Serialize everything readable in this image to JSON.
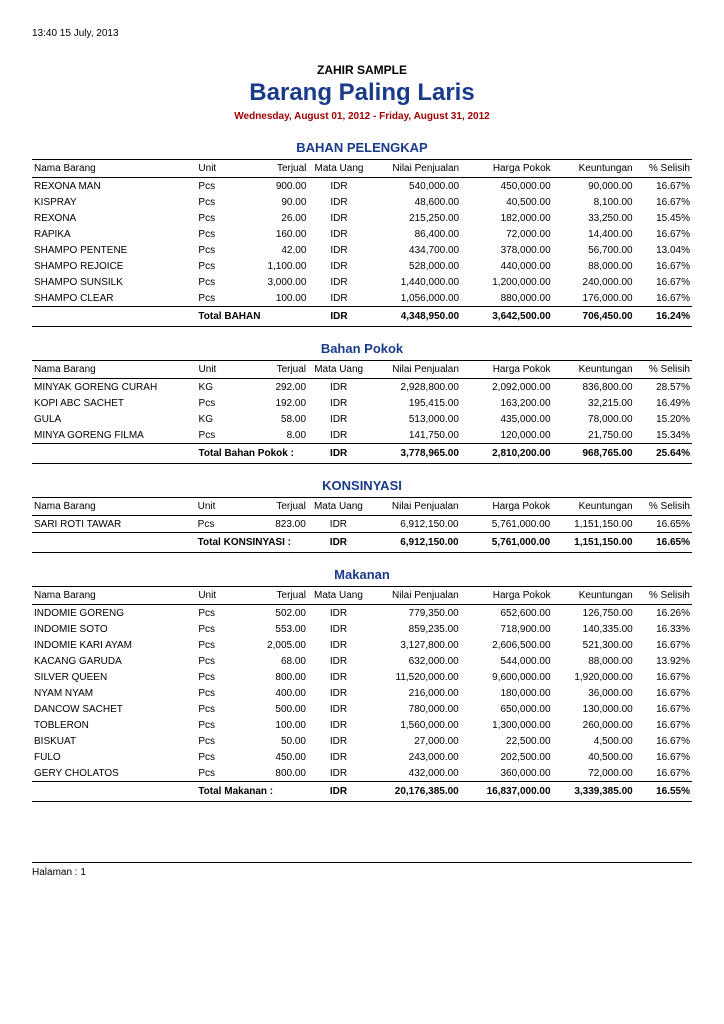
{
  "meta": {
    "timestamp": "13:40   15 July, 2013"
  },
  "header": {
    "company": "ZAHIR SAMPLE",
    "title": "Barang Paling Laris",
    "date_range": "Wednesday, August 01, 2012 - Friday, August 31, 2012"
  },
  "columns": {
    "nama": "Nama Barang",
    "unit": "Unit",
    "terjual": "Terjual",
    "mata_uang": "Mata Uang",
    "nilai": "Nilai Penjualan",
    "harga": "Harga Pokok",
    "keuntungan": "Keuntungan",
    "selisih": "% Selisih"
  },
  "sections": [
    {
      "title": "BAHAN PELENGKAP",
      "total_label": "Total BAHAN",
      "total": {
        "cur": "IDR",
        "nilai": "4,348,950.00",
        "harga": "3,642,500.00",
        "keun": "706,450.00",
        "sel": "16.24%"
      },
      "rows": [
        {
          "n": "REXONA MAN",
          "u": "Pcs",
          "t": "900.00",
          "c": "IDR",
          "ni": "540,000.00",
          "h": "450,000.00",
          "k": "90,000.00",
          "s": "16.67%"
        },
        {
          "n": "KISPRAY",
          "u": "Pcs",
          "t": "90.00",
          "c": "IDR",
          "ni": "48,600.00",
          "h": "40,500.00",
          "k": "8,100.00",
          "s": "16.67%"
        },
        {
          "n": "REXONA",
          "u": "Pcs",
          "t": "26.00",
          "c": "IDR",
          "ni": "215,250.00",
          "h": "182,000.00",
          "k": "33,250.00",
          "s": "15.45%"
        },
        {
          "n": "RAPIKA",
          "u": "Pcs",
          "t": "160.00",
          "c": "IDR",
          "ni": "86,400.00",
          "h": "72,000.00",
          "k": "14,400.00",
          "s": "16.67%"
        },
        {
          "n": "SHAMPO PENTENE",
          "u": "Pcs",
          "t": "42.00",
          "c": "IDR",
          "ni": "434,700.00",
          "h": "378,000.00",
          "k": "56,700.00",
          "s": "13.04%"
        },
        {
          "n": "SHAMPO REJOICE",
          "u": "Pcs",
          "t": "1,100.00",
          "c": "IDR",
          "ni": "528,000.00",
          "h": "440,000.00",
          "k": "88,000.00",
          "s": "16.67%"
        },
        {
          "n": "SHAMPO SUNSILK",
          "u": "Pcs",
          "t": "3,000.00",
          "c": "IDR",
          "ni": "1,440,000.00",
          "h": "1,200,000.00",
          "k": "240,000.00",
          "s": "16.67%"
        },
        {
          "n": "SHAMPO CLEAR",
          "u": "Pcs",
          "t": "100.00",
          "c": "IDR",
          "ni": "1,056,000.00",
          "h": "880,000.00",
          "k": "176,000.00",
          "s": "16.67%"
        }
      ]
    },
    {
      "title": "Bahan Pokok",
      "total_label": "Total Bahan Pokok :",
      "total": {
        "cur": "IDR",
        "nilai": "3,778,965.00",
        "harga": "2,810,200.00",
        "keun": "968,765.00",
        "sel": "25.64%"
      },
      "rows": [
        {
          "n": "MINYAK GORENG CURAH",
          "u": "KG",
          "t": "292.00",
          "c": "IDR",
          "ni": "2,928,800.00",
          "h": "2,092,000.00",
          "k": "836,800.00",
          "s": "28.57%"
        },
        {
          "n": "KOPI ABC SACHET",
          "u": "Pcs",
          "t": "192.00",
          "c": "IDR",
          "ni": "195,415.00",
          "h": "163,200.00",
          "k": "32,215.00",
          "s": "16.49%"
        },
        {
          "n": "GULA",
          "u": "KG",
          "t": "58.00",
          "c": "IDR",
          "ni": "513,000.00",
          "h": "435,000.00",
          "k": "78,000.00",
          "s": "15.20%"
        },
        {
          "n": "MINYA GORENG FILMA",
          "u": "Pcs",
          "t": "8.00",
          "c": "IDR",
          "ni": "141,750.00",
          "h": "120,000.00",
          "k": "21,750.00",
          "s": "15.34%"
        }
      ]
    },
    {
      "title": "KONSINYASI",
      "total_label": "Total KONSINYASI :",
      "total": {
        "cur": "IDR",
        "nilai": "6,912,150.00",
        "harga": "5,761,000.00",
        "keun": "1,151,150.00",
        "sel": "16.65%"
      },
      "rows": [
        {
          "n": "SARI ROTI TAWAR",
          "u": "Pcs",
          "t": "823.00",
          "c": "IDR",
          "ni": "6,912,150.00",
          "h": "5,761,000.00",
          "k": "1,151,150.00",
          "s": "16.65%"
        }
      ]
    },
    {
      "title": "Makanan",
      "total_label": "Total Makanan :",
      "total": {
        "cur": "IDR",
        "nilai": "20,176,385.00",
        "harga": "16,837,000.00",
        "keun": "3,339,385.00",
        "sel": "16.55%"
      },
      "rows": [
        {
          "n": "INDOMIE GORENG",
          "u": "Pcs",
          "t": "502.00",
          "c": "IDR",
          "ni": "779,350.00",
          "h": "652,600.00",
          "k": "126,750.00",
          "s": "16.26%"
        },
        {
          "n": "INDOMIE SOTO",
          "u": "Pcs",
          "t": "553.00",
          "c": "IDR",
          "ni": "859,235.00",
          "h": "718,900.00",
          "k": "140,335.00",
          "s": "16.33%"
        },
        {
          "n": "INDOMIE KARI AYAM",
          "u": "Pcs",
          "t": "2,005.00",
          "c": "IDR",
          "ni": "3,127,800.00",
          "h": "2,606,500.00",
          "k": "521,300.00",
          "s": "16.67%"
        },
        {
          "n": "KACANG GARUDA",
          "u": "Pcs",
          "t": "68.00",
          "c": "IDR",
          "ni": "632,000.00",
          "h": "544,000.00",
          "k": "88,000.00",
          "s": "13.92%"
        },
        {
          "n": "SILVER QUEEN",
          "u": "Pcs",
          "t": "800.00",
          "c": "IDR",
          "ni": "11,520,000.00",
          "h": "9,600,000.00",
          "k": "1,920,000.00",
          "s": "16.67%"
        },
        {
          "n": "NYAM NYAM",
          "u": "Pcs",
          "t": "400.00",
          "c": "IDR",
          "ni": "216,000.00",
          "h": "180,000.00",
          "k": "36,000.00",
          "s": "16.67%"
        },
        {
          "n": "DANCOW SACHET",
          "u": "Pcs",
          "t": "500.00",
          "c": "IDR",
          "ni": "780,000.00",
          "h": "650,000.00",
          "k": "130,000.00",
          "s": "16.67%"
        },
        {
          "n": "TOBLERON",
          "u": "Pcs",
          "t": "100.00",
          "c": "IDR",
          "ni": "1,560,000.00",
          "h": "1,300,000.00",
          "k": "260,000.00",
          "s": "16.67%"
        },
        {
          "n": "BISKUAT",
          "u": "Pcs",
          "t": "50.00",
          "c": "IDR",
          "ni": "27,000.00",
          "h": "22,500.00",
          "k": "4,500.00",
          "s": "16.67%"
        },
        {
          "n": "FULO",
          "u": "Pcs",
          "t": "450.00",
          "c": "IDR",
          "ni": "243,000.00",
          "h": "202,500.00",
          "k": "40,500.00",
          "s": "16.67%"
        },
        {
          "n": "GERY CHOLATOS",
          "u": "Pcs",
          "t": "800.00",
          "c": "IDR",
          "ni": "432,000.00",
          "h": "360,000.00",
          "k": "72,000.00",
          "s": "16.67%"
        }
      ]
    }
  ],
  "footer": {
    "page_label": "Halaman :  1"
  }
}
